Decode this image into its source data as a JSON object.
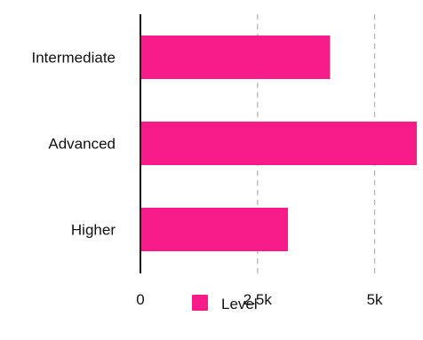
{
  "chart_data": {
    "type": "bar",
    "orientation": "horizontal",
    "categories": [
      "Intermediate",
      "Advanced",
      "Higher"
    ],
    "series": [
      {
        "name": "Level",
        "color": "#f71b8a",
        "values": [
          4050,
          5900,
          3150
        ]
      }
    ],
    "xlim": [
      0,
      5900
    ],
    "x_ticks": [
      {
        "value": 0,
        "label": "0"
      },
      {
        "value": 2500,
        "label": "2.5k"
      },
      {
        "value": 5000,
        "label": "5k"
      }
    ],
    "grid": "vertical dashed",
    "legend_position": "bottom",
    "title": "",
    "xlabel": "",
    "ylabel": ""
  }
}
